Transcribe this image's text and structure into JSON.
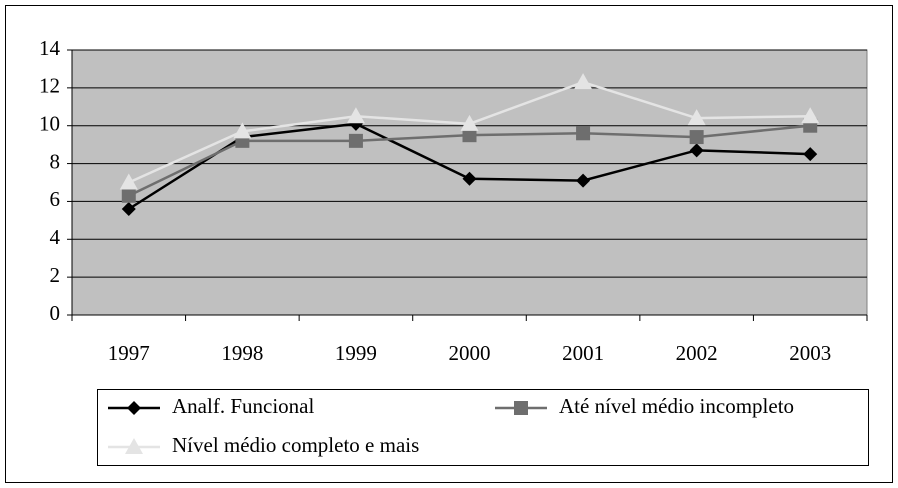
{
  "chart_data": {
    "type": "line",
    "categories": [
      "1997",
      "1998",
      "1999",
      "2000",
      "2001",
      "2002",
      "2003"
    ],
    "series": [
      {
        "name": "Analf. Funcional",
        "color": "#000000",
        "marker": "diamond",
        "values": [
          5.6,
          9.4,
          10.1,
          7.2,
          7.1,
          8.7,
          8.5
        ]
      },
      {
        "name": "Até nível médio incompleto",
        "color": "#6e6e6e",
        "marker": "square",
        "values": [
          6.3,
          9.2,
          9.2,
          9.5,
          9.6,
          9.4,
          10.0
        ]
      },
      {
        "name": "Nível médio completo e mais",
        "color": "#e4e4e4",
        "marker": "triangle",
        "values": [
          7.0,
          9.7,
          10.5,
          10.1,
          12.3,
          10.4,
          10.5
        ]
      }
    ],
    "ylim": [
      0,
      14
    ],
    "yticks": [
      0,
      2,
      4,
      6,
      8,
      10,
      12,
      14
    ],
    "grid": true,
    "plot_background": "#c0c0c0",
    "legend": "bottom"
  }
}
